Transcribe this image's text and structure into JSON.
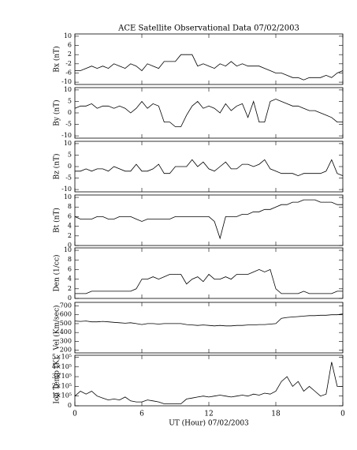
{
  "chart_data": [
    {
      "type": "line",
      "title": "ACE Satellite Observational Data   07/02/2003",
      "y_label": "Bx (nT)",
      "color": "#000000",
      "x": [
        0,
        0.5,
        1,
        1.5,
        2,
        2.5,
        3,
        3.5,
        4,
        4.5,
        5,
        5.5,
        6,
        6.5,
        7,
        7.5,
        8,
        8.5,
        9,
        9.5,
        10,
        10.5,
        11,
        11.5,
        12,
        12.5,
        13,
        13.5,
        14,
        14.5,
        15,
        15.5,
        16,
        16.5,
        17,
        17.5,
        18,
        18.5,
        19,
        19.5,
        20,
        20.5,
        21,
        21.5,
        22,
        22.5,
        23,
        23.5,
        24
      ],
      "values": [
        -5,
        -5,
        -4,
        -3,
        -4,
        -3,
        -4,
        -2,
        -3,
        -4,
        -2,
        -3,
        -5,
        -2,
        -3,
        -4,
        -1,
        -1,
        -1,
        2,
        2,
        2,
        -3,
        -2,
        -3,
        -4,
        -2,
        -3,
        -1,
        -3,
        -2,
        -3,
        -3,
        -3,
        -4,
        -5,
        -6,
        -6,
        -7,
        -8,
        -8,
        -9,
        -8,
        -8,
        -8,
        -7,
        -8,
        -6,
        -5
      ],
      "ylim": [
        -11,
        11
      ],
      "yticks": [
        -10,
        -6,
        -2,
        2,
        6,
        10
      ]
    },
    {
      "type": "line",
      "y_label": "By (nT)",
      "color": "#000000",
      "x": [
        0,
        0.5,
        1,
        1.5,
        2,
        2.5,
        3,
        3.5,
        4,
        4.5,
        5,
        5.5,
        6,
        6.5,
        7,
        7.5,
        8,
        8.5,
        9,
        9.5,
        10,
        10.5,
        11,
        11.5,
        12,
        12.5,
        13,
        13.5,
        14,
        14.5,
        15,
        15.5,
        16,
        16.5,
        17,
        17.5,
        18,
        18.5,
        19,
        19.5,
        20,
        20.5,
        21,
        21.5,
        22,
        22.5,
        23,
        23.5,
        24
      ],
      "values": [
        2,
        3,
        3,
        4,
        2,
        3,
        3,
        2,
        3,
        2,
        0,
        2,
        5,
        2,
        4,
        3,
        -4,
        -4,
        -6,
        -6,
        -1,
        3,
        5,
        2,
        3,
        2,
        0,
        4,
        1,
        3,
        4,
        -2,
        5,
        -4,
        -4,
        5,
        6,
        5,
        4,
        3,
        3,
        2,
        1,
        1,
        0,
        -1,
        -2,
        -4,
        -4
      ],
      "ylim": [
        -11,
        11
      ],
      "yticks": [
        -10,
        -5,
        0,
        5,
        10
      ]
    },
    {
      "type": "line",
      "y_label": "Bz (nT)",
      "color": "#000000",
      "x": [
        0,
        0.5,
        1,
        1.5,
        2,
        2.5,
        3,
        3.5,
        4,
        4.5,
        5,
        5.5,
        6,
        6.5,
        7,
        7.5,
        8,
        8.5,
        9,
        9.5,
        10,
        10.5,
        11,
        11.5,
        12,
        12.5,
        13,
        13.5,
        14,
        14.5,
        15,
        15.5,
        16,
        16.5,
        17,
        17.5,
        18,
        18.5,
        19,
        19.5,
        20,
        20.5,
        21,
        21.5,
        22,
        22.5,
        23,
        23.5,
        24
      ],
      "values": [
        -2,
        -2,
        -1,
        -2,
        -1,
        -1,
        -2,
        0,
        -1,
        -2,
        -2,
        1,
        -2,
        -2,
        -1,
        1,
        -3,
        -3,
        0,
        0,
        0,
        3,
        0,
        2,
        -1,
        -2,
        0,
        2,
        -1,
        -1,
        1,
        1,
        0,
        1,
        3,
        -1,
        -2,
        -3,
        -3,
        -3,
        -4,
        -3,
        -3,
        -3,
        -3,
        -2,
        3,
        -3,
        -4
      ],
      "ylim": [
        -11,
        11
      ],
      "yticks": [
        -10,
        -5,
        0,
        5,
        10
      ]
    },
    {
      "type": "line",
      "y_label": "Bt (nT)",
      "color": "#000000",
      "x": [
        0,
        0.5,
        1,
        1.5,
        2,
        2.5,
        3,
        3.5,
        4,
        4.5,
        5,
        5.5,
        6,
        6.5,
        7,
        7.5,
        8,
        8.5,
        9,
        9.5,
        10,
        10.5,
        11,
        11.5,
        12,
        12.5,
        13,
        13.5,
        14,
        14.5,
        15,
        15.5,
        16,
        16.5,
        17,
        17.5,
        18,
        18.5,
        19,
        19.5,
        20,
        20.5,
        21,
        21.5,
        22,
        22.5,
        23,
        23.5,
        24
      ],
      "values": [
        6,
        5.5,
        5.5,
        5.5,
        6,
        6,
        5.5,
        5.5,
        6,
        6,
        6,
        5.5,
        5,
        5.5,
        5.5,
        5.5,
        5.5,
        5.5,
        6,
        6,
        6,
        6,
        6,
        6,
        6,
        5,
        1.5,
        6,
        6,
        6,
        6.5,
        6.5,
        7,
        7,
        7.5,
        7.5,
        8,
        8.5,
        8.5,
        9,
        9,
        9.5,
        9.5,
        9.5,
        9,
        9,
        9,
        8.5,
        8.5
      ],
      "ylim": [
        0,
        10.5
      ],
      "yticks": [
        0,
        2,
        4,
        6,
        8,
        10
      ]
    },
    {
      "type": "line",
      "y_label": "Den (1/cc)",
      "color": "#000000",
      "x": [
        0,
        0.5,
        1,
        1.5,
        2,
        2.5,
        3,
        3.5,
        4,
        4.5,
        5,
        5.5,
        6,
        6.5,
        7,
        7.5,
        8,
        8.5,
        9,
        9.5,
        10,
        10.5,
        11,
        11.5,
        12,
        12.5,
        13,
        13.5,
        14,
        14.5,
        15,
        15.5,
        16,
        16.5,
        17,
        17.5,
        18,
        18.5,
        19,
        19.5,
        20,
        20.5,
        21,
        21.5,
        22,
        22.5,
        23,
        23.5,
        24
      ],
      "values": [
        1,
        1,
        1,
        1.5,
        1.5,
        1.5,
        1.5,
        1.5,
        1.5,
        1.5,
        1.5,
        2,
        4,
        4,
        4.5,
        4,
        4.5,
        5,
        5,
        5,
        3,
        4,
        4.5,
        3.5,
        5,
        4,
        4,
        4.5,
        4,
        5,
        5,
        5,
        5.5,
        6,
        5.5,
        6,
        2,
        1,
        1,
        1,
        1,
        1.5,
        1,
        1,
        1,
        1,
        1,
        1.5,
        1.5
      ],
      "ylim": [
        0,
        10.5
      ],
      "yticks": [
        0,
        2,
        4,
        6,
        8,
        10
      ]
    },
    {
      "type": "line",
      "y_label": "Vel (Km/sec)",
      "color": "#000000",
      "x": [
        0,
        0.5,
        1,
        1.5,
        2,
        2.5,
        3,
        3.5,
        4,
        4.5,
        5,
        5.5,
        6,
        6.5,
        7,
        7.5,
        8,
        8.5,
        9,
        9.5,
        10,
        10.5,
        11,
        11.5,
        12,
        12.5,
        13,
        13.5,
        14,
        14.5,
        15,
        15.5,
        16,
        16.5,
        17,
        17.5,
        18,
        18.5,
        19,
        19.5,
        20,
        20.5,
        21,
        21.5,
        22,
        22.5,
        23,
        23.5,
        24
      ],
      "values": [
        530,
        525,
        530,
        520,
        520,
        525,
        520,
        515,
        510,
        505,
        510,
        500,
        490,
        500,
        500,
        495,
        500,
        500,
        500,
        500,
        490,
        485,
        480,
        485,
        480,
        475,
        480,
        475,
        475,
        480,
        480,
        485,
        485,
        490,
        490,
        495,
        500,
        560,
        570,
        575,
        580,
        585,
        590,
        590,
        595,
        595,
        600,
        600,
        610
      ],
      "ylim": [
        170,
        740
      ],
      "yticks": [
        200,
        300,
        400,
        500,
        600,
        700
      ]
    },
    {
      "type": "line",
      "y_label": "Ion Temp (K)",
      "x_label": "UT (Hour)  07/02/2003",
      "color": "#000000",
      "x": [
        0,
        0.5,
        1,
        1.5,
        2,
        2.5,
        3,
        3.5,
        4,
        4.5,
        5,
        5.5,
        6,
        6.5,
        7,
        7.5,
        8,
        8.5,
        9,
        9.5,
        10,
        10.5,
        11,
        11.5,
        12,
        12.5,
        13,
        13.5,
        14,
        14.5,
        15,
        15.5,
        16,
        16.5,
        17,
        17.5,
        18,
        18.5,
        19,
        19.5,
        20,
        20.5,
        21,
        21.5,
        22,
        22.5,
        23,
        23.5,
        24
      ],
      "values": [
        100000,
        150000,
        120000,
        150000,
        100000,
        80000,
        60000,
        70000,
        60000,
        90000,
        50000,
        40000,
        40000,
        60000,
        50000,
        40000,
        20000,
        20000,
        20000,
        20000,
        70000,
        80000,
        90000,
        100000,
        90000,
        100000,
        110000,
        100000,
        90000,
        100000,
        110000,
        100000,
        120000,
        110000,
        130000,
        120000,
        150000,
        250000,
        300000,
        200000,
        250000,
        150000,
        200000,
        150000,
        100000,
        120000,
        450000,
        200000,
        200000
      ],
      "ylim": [
        0,
        520000
      ],
      "yticks": [
        0,
        {
          "value": 100000,
          "label": "1×10⁵"
        },
        {
          "value": 200000,
          "label": "2×10⁵"
        },
        {
          "value": 300000,
          "label": "3×10⁵"
        },
        {
          "value": 400000,
          "label": "4×10⁵"
        },
        {
          "value": 500000,
          "label": "5×10⁵"
        }
      ],
      "xlim": [
        0,
        24
      ],
      "xticks": [
        0,
        6,
        12,
        18,
        {
          "value": 24,
          "label": "0"
        }
      ]
    }
  ]
}
